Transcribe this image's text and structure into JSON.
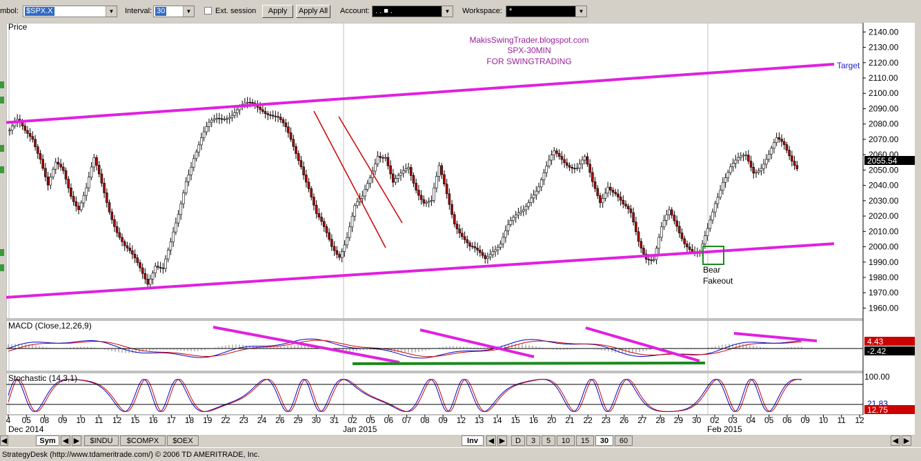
{
  "toolbar": {
    "symbol_label": "mbol:",
    "symbol_value": "$SPX.X",
    "interval_label": "Interval:",
    "interval_value": "30",
    "ext_session_label": "Ext. session",
    "apply_label": "Apply",
    "apply_all_label": "Apply All",
    "account_label": "Account:",
    "account_value": ".   .   ■   .",
    "workspace_label": "Workspace:",
    "workspace_value": "*"
  },
  "chart": {
    "price_panel_title": "Price",
    "watermark": [
      "MakisSwingTrader.blogspot.com",
      "SPX-30MIN",
      "FOR SWINGTRADING"
    ],
    "target_label": "Target",
    "bear_label": "Bear",
    "fakeout_label": "Fakeout",
    "last_price": "2055.54",
    "macd_title": "MACD (Close,12,26,9)",
    "macd_value1": "4.43",
    "macd_value2": "-2.42",
    "stoch_title": "Stochastic (14,3,1)",
    "stoch_value1": "100.00",
    "stoch_value2": "12.75",
    "stoch_value_partial": "21.83",
    "colors": {
      "channel": "#e020e0",
      "trend": "#cc0000",
      "down_candle": "#aa0000",
      "macd_green": "#1a8a1a",
      "target_text": "#2222cc",
      "watermark": "#9c1f9c"
    }
  },
  "chart_data": {
    "type": "candlestick",
    "title": "SPX-30MIN",
    "y_ticks": [
      2140,
      2130,
      2120,
      2110,
      2100,
      2090,
      2080,
      2070,
      2060,
      2050,
      2040,
      2030,
      2020,
      2010,
      2000,
      1990,
      1980,
      1970,
      1960
    ],
    "ylim": [
      1953,
      2146
    ],
    "x_ticks": [
      "4",
      "05",
      "08",
      "09",
      "10",
      "11",
      "12",
      "15",
      "16",
      "17",
      "18",
      "19",
      "22",
      "23",
      "24",
      "26",
      "29",
      "30",
      "31",
      "02",
      "05",
      "06",
      "07",
      "08",
      "09",
      "12",
      "13",
      "14",
      "15",
      "16",
      "20",
      "21",
      "22",
      "23",
      "26",
      "27",
      "28",
      "29",
      "30",
      "02",
      "03",
      "04",
      "05",
      "06",
      "09",
      "10",
      "11",
      "12"
    ],
    "month_labels": [
      "Dec 2014",
      "Jan 2015",
      "Feb 2015"
    ],
    "close_path": [
      2076,
      2080,
      2074,
      2072,
      2060,
      2040,
      2052,
      2048,
      2035,
      2027,
      2038,
      2055,
      2040,
      2025,
      2012,
      2000,
      1992,
      1985,
      1978,
      1990,
      1985,
      2000,
      2020,
      2045,
      2060,
      2070,
      2078,
      2083,
      2086,
      2088,
      2090,
      2091,
      2092,
      2091,
      2088,
      2083,
      2075,
      2065,
      2055,
      2040,
      2020,
      2010,
      2000,
      1996,
      2008,
      2025,
      2030,
      2045,
      2062,
      2060,
      2040,
      2045,
      2052,
      2040,
      2030,
      2028,
      2050,
      2035,
      2018,
      2008,
      1998,
      1995,
      1993,
      2000,
      2003,
      2012,
      2018,
      2025,
      2035,
      2040,
      2050,
      2060,
      2058,
      2055,
      2052,
      2056,
      2040,
      2030,
      2042,
      2035,
      2025,
      2020,
      2005,
      1995,
      1992,
      2010,
      2022,
      2015,
      2005,
      1997,
      1993,
      2010,
      2030,
      2045,
      2052,
      2055,
      2058,
      2050,
      2054,
      2060,
      2068,
      2065,
      2058,
      2052
    ],
    "channel_upper": {
      "from": {
        "x": "4",
        "y": 2081
      },
      "to": {
        "x": "11",
        "y": 2119
      }
    },
    "channel_lower": {
      "from": {
        "x": "4",
        "y": 1967
      },
      "to": {
        "x": "11",
        "y": 2002
      }
    },
    "last_value": 2055.54,
    "macd": {
      "value": 4.43,
      "signal": -2.42
    },
    "stochastic": {
      "k": 12.75,
      "level_top": 100.0
    }
  },
  "bottom": {
    "tabs": [
      "Sym",
      "$INDU",
      "$COMPX",
      "$OEX"
    ],
    "inv_label": "Inv",
    "intervals": [
      "D",
      "3",
      "5",
      "10",
      "15",
      "30",
      "60"
    ]
  },
  "status": {
    "text": "StrategyDesk (http://www.tdameritrade.com/) © 2006 TD AMERITRADE, Inc."
  }
}
